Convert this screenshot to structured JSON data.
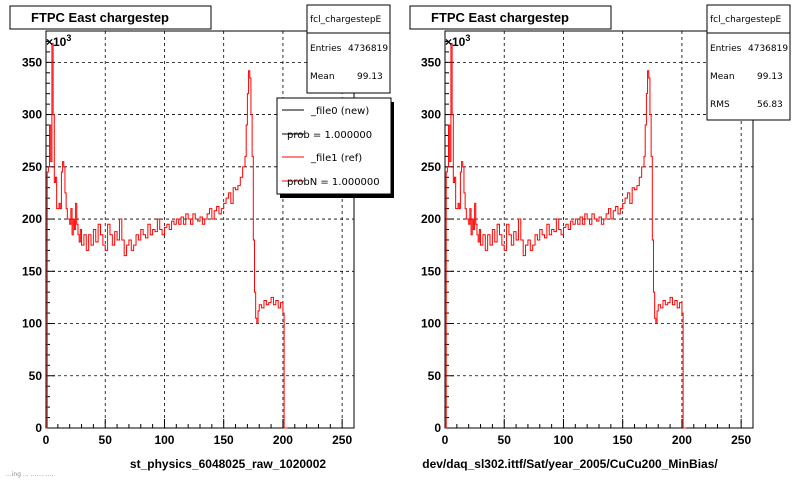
{
  "footer_text": "...ing ... ....... ....",
  "left_panel": {
    "title": "FTPC East chargestep",
    "xlabel": "st_physics_6048025_raw_1020002",
    "exponent_label": "×10",
    "exponent_power": "3",
    "stats": {
      "name": "fcl_chargestepE",
      "entries_label": "Entries",
      "entries_value": "4736819",
      "mean_label": "Mean",
      "mean_value": "99.13"
    },
    "legend": [
      {
        "label": "_file0 (new)",
        "color": "#000000"
      },
      {
        "label": "prob = 1.000000",
        "color": "#000000"
      },
      {
        "label": "_file1 (ref)",
        "color": "#ff0000"
      },
      {
        "label": "probN = 1.000000",
        "color": "#ff0000"
      }
    ]
  },
  "right_panel": {
    "title": "FTPC East chargestep",
    "xlabel": "dev/daq_sl302.ittf/Sat/year_2005/CuCu200_MinBias/",
    "exponent_label": "×10",
    "exponent_power": "3",
    "stats": {
      "name": "fcl_chargestepE",
      "entries_label": "Entries",
      "entries_value": "4736819",
      "mean_label": "Mean",
      "mean_value": "99.13",
      "rms_label": "RMS",
      "rms_value": "56.83"
    }
  },
  "chart_data": [
    {
      "type": "line",
      "xlim": [
        0,
        260
      ],
      "ylim": [
        0,
        380
      ],
      "x_ticks": [
        0,
        50,
        100,
        150,
        200,
        250
      ],
      "y_ticks": [
        0,
        50,
        100,
        150,
        200,
        250,
        300,
        350
      ],
      "grid": true,
      "line_color": "#ff0000",
      "y_unit_multiplier": 1000,
      "x": [
        0,
        1,
        2,
        3,
        4,
        5,
        6,
        7,
        8,
        9,
        10,
        11,
        12,
        13,
        14,
        15,
        16,
        17,
        18,
        19,
        20,
        21,
        22,
        23,
        24,
        25,
        26,
        27,
        28,
        29,
        30,
        32,
        34,
        36,
        38,
        40,
        42,
        44,
        46,
        48,
        50,
        52,
        54,
        56,
        58,
        60,
        62,
        64,
        66,
        68,
        70,
        72,
        74,
        76,
        78,
        80,
        82,
        84,
        86,
        88,
        90,
        92,
        94,
        96,
        98,
        100,
        102,
        104,
        106,
        108,
        110,
        112,
        114,
        116,
        118,
        120,
        122,
        124,
        126,
        128,
        130,
        132,
        134,
        136,
        138,
        140,
        142,
        144,
        146,
        148,
        150,
        152,
        154,
        156,
        158,
        160,
        162,
        164,
        166,
        168,
        169,
        170,
        171,
        172,
        173,
        174,
        175,
        176,
        177,
        178,
        179,
        180,
        182,
        184,
        186,
        188,
        190,
        192,
        194,
        196,
        198,
        200,
        201,
        202,
        203,
        204
      ],
      "y": [
        0,
        245,
        250,
        290,
        255,
        368,
        300,
        235,
        240,
        210,
        210,
        215,
        210,
        245,
        255,
        250,
        225,
        210,
        200,
        200,
        195,
        210,
        185,
        200,
        190,
        215,
        195,
        185,
        178,
        190,
        175,
        185,
        170,
        185,
        175,
        190,
        178,
        195,
        185,
        175,
        170,
        195,
        185,
        175,
        188,
        180,
        200,
        180,
        165,
        175,
        180,
        170,
        175,
        185,
        180,
        190,
        185,
        182,
        195,
        185,
        190,
        188,
        200,
        190,
        185,
        192,
        195,
        190,
        198,
        195,
        200,
        195,
        202,
        195,
        205,
        200,
        195,
        205,
        200,
        198,
        202,
        195,
        200,
        205,
        210,
        200,
        208,
        212,
        205,
        210,
        215,
        220,
        225,
        215,
        230,
        228,
        232,
        240,
        250,
        260,
        290,
        320,
        342,
        335,
        300,
        260,
        180,
        130,
        105,
        100,
        112,
        118,
        115,
        122,
        118,
        120,
        125,
        118,
        122,
        115,
        120,
        110,
        0,
        0,
        0,
        0
      ]
    },
    {
      "type": "line",
      "xlim": [
        0,
        260
      ],
      "ylim": [
        0,
        380
      ],
      "x_ticks": [
        0,
        50,
        100,
        150,
        200,
        250
      ],
      "y_ticks": [
        0,
        50,
        100,
        150,
        200,
        250,
        300,
        350
      ],
      "grid": true,
      "line_color": "#ff0000",
      "y_unit_multiplier": 1000,
      "x": [
        0,
        1,
        2,
        3,
        4,
        5,
        6,
        7,
        8,
        9,
        10,
        11,
        12,
        13,
        14,
        15,
        16,
        17,
        18,
        19,
        20,
        21,
        22,
        23,
        24,
        25,
        26,
        27,
        28,
        29,
        30,
        32,
        34,
        36,
        38,
        40,
        42,
        44,
        46,
        48,
        50,
        52,
        54,
        56,
        58,
        60,
        62,
        64,
        66,
        68,
        70,
        72,
        74,
        76,
        78,
        80,
        82,
        84,
        86,
        88,
        90,
        92,
        94,
        96,
        98,
        100,
        102,
        104,
        106,
        108,
        110,
        112,
        114,
        116,
        118,
        120,
        122,
        124,
        126,
        128,
        130,
        132,
        134,
        136,
        138,
        140,
        142,
        144,
        146,
        148,
        150,
        152,
        154,
        156,
        158,
        160,
        162,
        164,
        166,
        168,
        169,
        170,
        171,
        172,
        173,
        174,
        175,
        176,
        177,
        178,
        179,
        180,
        182,
        184,
        186,
        188,
        190,
        192,
        194,
        196,
        198,
        200,
        201,
        202,
        203,
        204
      ],
      "y": [
        0,
        245,
        250,
        290,
        255,
        368,
        300,
        235,
        240,
        210,
        210,
        215,
        210,
        245,
        255,
        250,
        225,
        210,
        200,
        200,
        195,
        210,
        185,
        200,
        190,
        215,
        195,
        185,
        178,
        190,
        175,
        185,
        170,
        185,
        175,
        190,
        178,
        195,
        185,
        175,
        170,
        195,
        185,
        175,
        188,
        180,
        200,
        180,
        165,
        175,
        180,
        170,
        175,
        185,
        180,
        190,
        185,
        182,
        195,
        185,
        190,
        188,
        200,
        190,
        185,
        192,
        195,
        190,
        198,
        195,
        200,
        195,
        202,
        195,
        205,
        200,
        195,
        205,
        200,
        198,
        202,
        195,
        200,
        205,
        210,
        200,
        208,
        212,
        205,
        210,
        215,
        220,
        225,
        215,
        230,
        228,
        232,
        240,
        250,
        260,
        290,
        320,
        342,
        335,
        300,
        260,
        180,
        130,
        105,
        100,
        112,
        118,
        115,
        122,
        118,
        120,
        125,
        118,
        122,
        115,
        120,
        110,
        0,
        0,
        0,
        0
      ]
    }
  ]
}
